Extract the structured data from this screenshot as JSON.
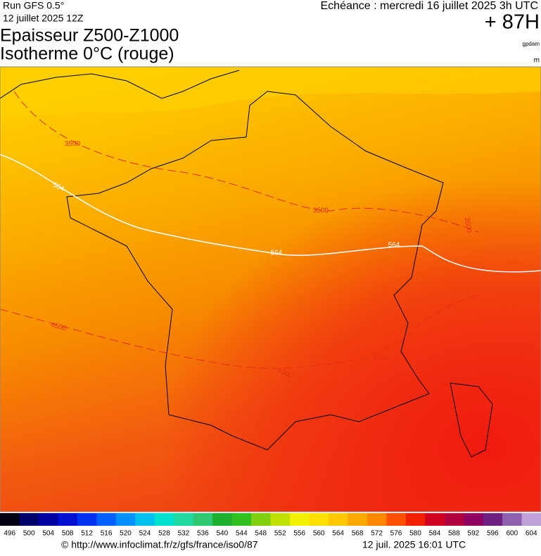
{
  "header": {
    "run": "Run GFS 0.5°",
    "date": "12 juillet 2025 12Z",
    "title_line1": "Epaisseur Z500-Z1000",
    "title_line2": "Isotherme 0°C (rouge)",
    "echeance": "Echéance : mercredi 16 juillet 2025 3h UTC",
    "lead": "+ 87H",
    "unit_thickness": "gpdam",
    "unit_iso": "m"
  },
  "contour_labels": {
    "iso_3500": [
      "3500",
      "3500",
      "3500"
    ],
    "thickness_564": [
      "564",
      "564",
      "564"
    ],
    "iso_4500": [
      "4500",
      "4500",
      "4500"
    ]
  },
  "legend": {
    "labels": [
      496,
      500,
      504,
      508,
      512,
      516,
      520,
      524,
      528,
      532,
      536,
      540,
      544,
      548,
      552,
      556,
      560,
      564,
      568,
      572,
      576,
      580,
      584,
      588,
      592,
      596,
      600,
      604
    ],
    "colors": [
      "#000010",
      "#00006a",
      "#0000a0",
      "#0010d0",
      "#0030f0",
      "#0060ff",
      "#0090ff",
      "#00c0f0",
      "#00e0d0",
      "#20d8a0",
      "#30c870",
      "#20b030",
      "#30c020",
      "#80d010",
      "#c0e000",
      "#f0f000",
      "#ffe000",
      "#ffc800",
      "#ffa800",
      "#ff8800",
      "#ff5000",
      "#f02000",
      "#d00020",
      "#b00040",
      "#900060",
      "#702080",
      "#9060b0",
      "#c0a0d8"
    ]
  },
  "footer": {
    "url": "© http://www.infoclimat.fr/z/gfs/france/iso0/87",
    "generated": "12 juil. 2025 16:01 UTC"
  }
}
